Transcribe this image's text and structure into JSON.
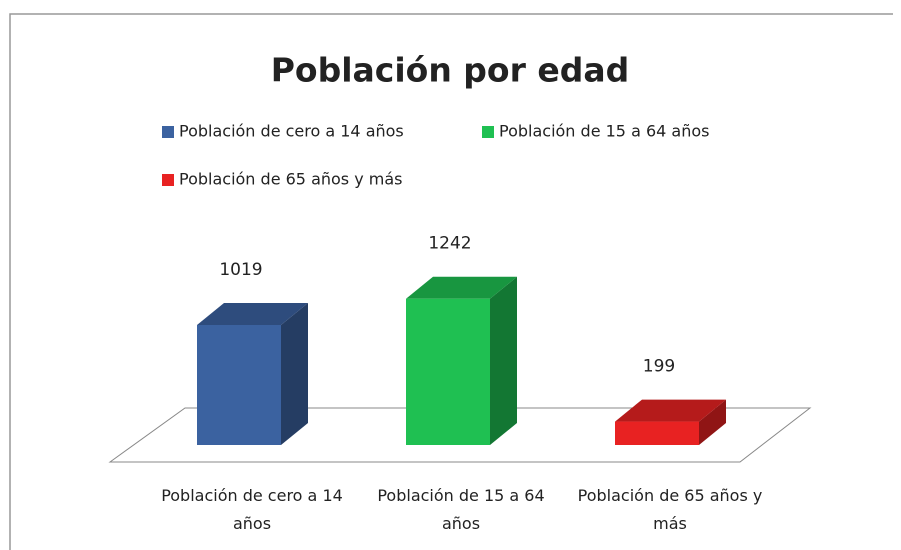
{
  "chart_data": {
    "type": "bar3d",
    "title": "Población por edad",
    "categories": [
      "Población de cero a 14 años",
      "Población de 15 a 64 años",
      "Población de 65 años y más"
    ],
    "values": [
      1019,
      1242,
      199
    ],
    "colors": [
      "#3b62a0",
      "#1fc052",
      "#e82222"
    ]
  }
}
